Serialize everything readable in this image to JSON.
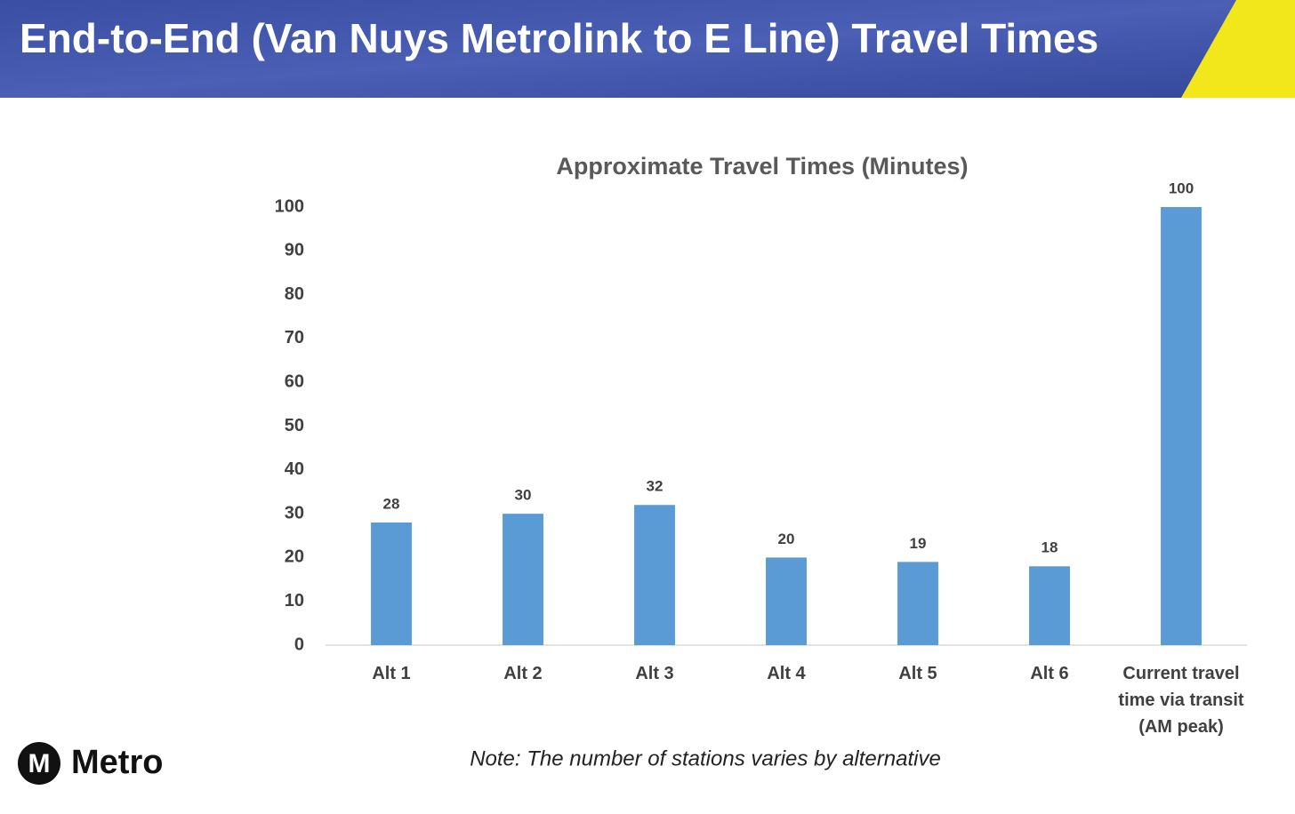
{
  "header": {
    "title": "End-to-End (Van Nuys Metrolink to E Line) Travel Times"
  },
  "chart_data": {
    "type": "bar",
    "title": "Approximate Travel Times (Minutes)",
    "categories": [
      "Alt 1",
      "Alt 2",
      "Alt 3",
      "Alt 4",
      "Alt 5",
      "Alt 6",
      "Current travel time via transit (AM peak)"
    ],
    "values": [
      28,
      30,
      32,
      20,
      19,
      18,
      100
    ],
    "color": "#5b9bd5",
    "ylim": [
      0,
      100
    ],
    "yticks": [
      0,
      10,
      20,
      30,
      40,
      50,
      60,
      70,
      80,
      90,
      100
    ],
    "grid": false,
    "annotation": "Note: The number of stations varies by alternative"
  },
  "logo": {
    "mark": "M",
    "text": "Metro"
  }
}
